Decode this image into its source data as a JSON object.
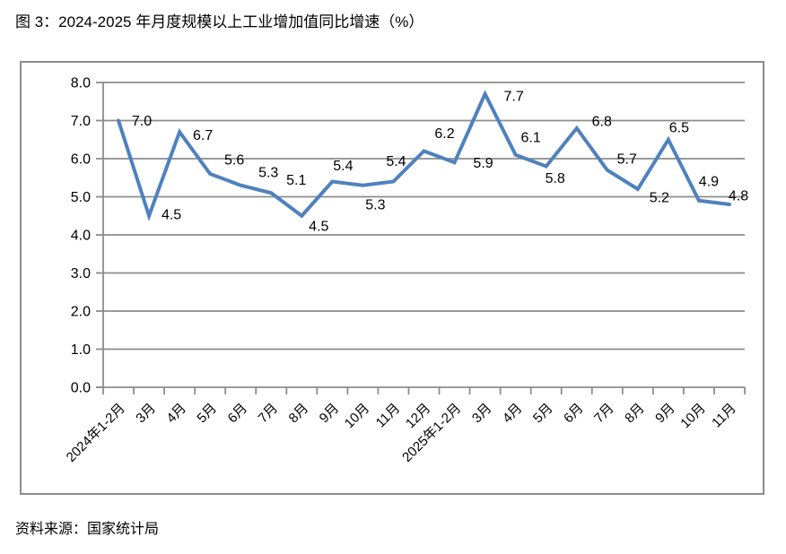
{
  "title": "图 3：2024-2025 年月度规模以上工业增加值同比增速（%）",
  "source": "资料来源：国家统计局",
  "chart_data": {
    "type": "line",
    "title": "2024-2025 年月度规模以上工业增加值同比增速（%）",
    "categories": [
      "2024年1-2月",
      "3月",
      "4月",
      "5月",
      "6月",
      "7月",
      "8月",
      "9月",
      "10月",
      "11月",
      "12月",
      "2025年1-2月",
      "3月",
      "4月",
      "5月",
      "6月",
      "7月",
      "8月",
      "9月",
      "10月",
      "11月"
    ],
    "values": [
      7.0,
      4.5,
      6.7,
      5.6,
      5.3,
      5.1,
      4.5,
      5.4,
      5.3,
      5.4,
      6.2,
      5.9,
      7.7,
      6.1,
      5.8,
      6.8,
      5.7,
      5.2,
      6.5,
      4.9,
      4.8
    ],
    "data_labels": [
      "7.0",
      "4.5",
      "6.7",
      "5.6",
      "5.3",
      "5.1",
      "4.5",
      "5.4",
      "5.3",
      "5.4",
      "6.2",
      "5.9",
      "7.7",
      "6.1",
      "5.8",
      "6.8",
      "5.7",
      "5.2",
      "6.5",
      "4.9",
      "4.8"
    ],
    "y_ticks": [
      "0.0",
      "1.0",
      "2.0",
      "3.0",
      "4.0",
      "5.0",
      "6.0",
      "7.0",
      "8.0"
    ],
    "ylim": [
      0,
      8
    ],
    "xlabel": "",
    "ylabel": "",
    "grid": "horizontal",
    "legend": "none",
    "line_color": "#4F81BD",
    "grid_color": "#8C8C8C",
    "text_color": "#000000",
    "background_color": "#FFFFFF"
  }
}
